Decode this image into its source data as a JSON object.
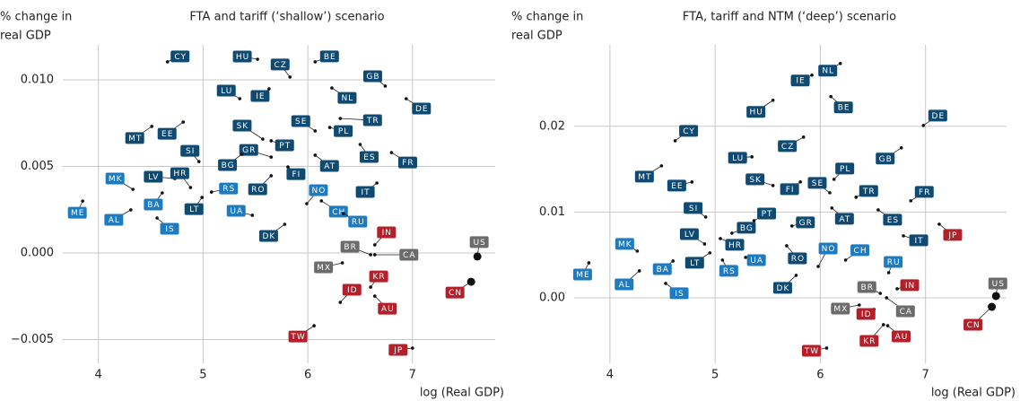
{
  "chart_data": [
    {
      "type": "scatter",
      "title": "FTA and tariff (‘shallow’) scenario",
      "ylabel": [
        "% change in",
        "real GDP"
      ],
      "xlabel": "log (Real GDP)",
      "xlim": [
        3.66,
        7.79
      ],
      "xticks": [
        4,
        5,
        6,
        7
      ],
      "ylim": [
        -0.00637,
        0.01202
      ],
      "yticks": [
        {
          "value": -0.005,
          "label": "−0.005"
        },
        {
          "value": 0,
          "label": "0.000"
        },
        0.005,
        {
          "value": 0.01,
          "label": "0.010"
        }
      ],
      "grid": true,
      "labels": [
        "CY",
        "HU",
        "CZ",
        "BE",
        "GB",
        "NL",
        "DE",
        "LU",
        "IE",
        "SE",
        "TR",
        "SK",
        "PT",
        "PL",
        "MT",
        "EE",
        "SI",
        "GR",
        "ES",
        "FR",
        "BG",
        "AT",
        "FI",
        "MK",
        "LV",
        "HR",
        "RS",
        "RO",
        "NO",
        "IT",
        "ME",
        "AL",
        "BA",
        "IS",
        "LT",
        "UA",
        "CH",
        "RU",
        "DK",
        "IN",
        "BR",
        "CA",
        "US",
        "MX",
        "KR",
        "ID",
        "AU",
        "CN",
        "TW",
        "JP"
      ],
      "x": [
        4.66,
        5.52,
        5.83,
        6.07,
        6.74,
        6.23,
        6.94,
        5.35,
        5.63,
        6.07,
        6.31,
        5.57,
        5.65,
        6.21,
        4.51,
        4.81,
        4.96,
        5.65,
        6.5,
        6.8,
        5.37,
        6.07,
        5.81,
        4.33,
        4.73,
        4.88,
        5.08,
        5.65,
        5.99,
        6.66,
        3.85,
        4.31,
        4.61,
        4.56,
        4.99,
        5.47,
        6.13,
        6.34,
        5.78,
        6.64,
        6.6,
        6.64,
        7.62,
        6.33,
        6.6,
        6.31,
        6.64,
        7.56,
        6.06,
        7.0
      ],
      "values": [
        0.01104,
        0.01119,
        0.01016,
        0.01104,
        0.00964,
        0.00953,
        0.00891,
        0.00891,
        0.00948,
        0.00705,
        0.00777,
        0.00658,
        0.00648,
        0.00725,
        0.00731,
        0.00756,
        0.00528,
        0.00554,
        0.00627,
        0.0058,
        0.0057,
        0.00565,
        0.00497,
        0.00368,
        0.0043,
        0.00378,
        0.00352,
        0.00446,
        0.00285,
        0.00404,
        0.003,
        0.00249,
        0.00347,
        0.00202,
        0.00321,
        0.00218,
        0.00301,
        0.00228,
        0.00166,
        0.00047,
        -0.0001,
        -0.0001,
        -0.0002,
        -0.00057,
        -0.00197,
        -0.00285,
        -0.00249,
        -0.00166,
        -0.0042,
        -0.00549
      ],
      "colors": [
        "#0e4a72",
        "#0e4a72",
        "#0e4a72",
        "#0e4a72",
        "#0e4a72",
        "#0e4a72",
        "#0e4a72",
        "#0e4a72",
        "#0e4a72",
        "#0e4a72",
        "#0e4a72",
        "#0e4a72",
        "#0e4a72",
        "#0e4a72",
        "#0e4a72",
        "#0e4a72",
        "#0e4a72",
        "#0e4a72",
        "#0e4a72",
        "#0e4a72",
        "#0e4a72",
        "#0e4a72",
        "#0e4a72",
        "#1f7bbf",
        "#0e4a72",
        "#0e4a72",
        "#1f7bbf",
        "#0e4a72",
        "#1f7bbf",
        "#0e4a72",
        "#1f7bbf",
        "#1f7bbf",
        "#1f7bbf",
        "#1f7bbf",
        "#0e4a72",
        "#1f7bbf",
        "#1f7bbf",
        "#1f7bbf",
        "#0e4a72",
        "#b3202a",
        "#6b6b6b",
        "#6b6b6b",
        "#6b6b6b",
        "#6b6b6b",
        "#b3202a",
        "#b3202a",
        "#b3202a",
        "#b3202a",
        "#b3202a",
        "#b3202a"
      ]
    },
    {
      "type": "scatter",
      "title": "FTA, tariff and NTM (‘deep’) scenario",
      "ylabel": [
        "% change in",
        "real GDP"
      ],
      "xlabel": "log (Real GDP)",
      "xlim": [
        3.66,
        7.77
      ],
      "xticks": [
        4,
        5,
        6,
        7
      ],
      "ylim": [
        -0.00764,
        0.0295
      ],
      "yticks": [
        {
          "value": 0,
          "label": "0.00"
        },
        0.01,
        0.02
      ],
      "grid": true,
      "labels": [
        "NL",
        "IE",
        "HU",
        "BE",
        "DE",
        "CY",
        "CZ",
        "GB",
        "LU",
        "MT",
        "PL",
        "SK",
        "EE",
        "FI",
        "SE",
        "TR",
        "FR",
        "SI",
        "PT",
        "AT",
        "ES",
        "GR",
        "BG",
        "JP",
        "MK",
        "LV",
        "HR",
        "IT",
        "NO",
        "CH",
        "BA",
        "LT",
        "UA",
        "RO",
        "RS",
        "ME",
        "RU",
        "AL",
        "IS",
        "DK",
        "BR",
        "IN",
        "US",
        "MX",
        "CA",
        "ID",
        "CN",
        "AU",
        "KR",
        "TW"
      ],
      "x": [
        6.19,
        5.92,
        5.55,
        6.1,
        6.98,
        4.62,
        5.84,
        6.77,
        5.35,
        4.49,
        6.13,
        5.55,
        4.78,
        5.81,
        6.09,
        6.34,
        6.86,
        4.91,
        5.37,
        6.11,
        6.55,
        5.73,
        5.16,
        7.13,
        4.26,
        4.9,
        5.05,
        6.79,
        5.98,
        6.24,
        4.6,
        4.95,
        5.29,
        5.68,
        5.07,
        3.8,
        6.65,
        4.28,
        4.53,
        5.77,
        6.57,
        6.73,
        7.67,
        6.37,
        6.63,
        6.51,
        7.63,
        6.64,
        6.6,
        6.06
      ],
      "values": [
        0.02733,
        0.02597,
        0.02304,
        0.02346,
        0.0201,
        0.01832,
        0.01874,
        0.01749,
        0.01644,
        0.01539,
        0.01382,
        0.01309,
        0.01351,
        0.01351,
        0.01225,
        0.01173,
        0.01131,
        0.00942,
        0.009,
        0.01047,
        0.01026,
        0.00838,
        0.00754,
        0.00859,
        0.00545,
        0.00628,
        0.00691,
        0.00723,
        0.00366,
        0.0044,
        0.00429,
        0.00524,
        0.00471,
        0.00607,
        0.0044,
        0.00408,
        0.00293,
        0.00314,
        0.00168,
        0.00262,
        0.00052,
        0.00105,
        0.00021,
        -0.00084,
        0,
        -0.00136,
        -0.00105,
        -0.00325,
        -0.00314,
        -0.00586
      ],
      "colors": [
        "#0e4a72",
        "#0e4a72",
        "#0e4a72",
        "#0e4a72",
        "#0e4a72",
        "#0e4a72",
        "#0e4a72",
        "#0e4a72",
        "#0e4a72",
        "#0e4a72",
        "#0e4a72",
        "#0e4a72",
        "#0e4a72",
        "#0e4a72",
        "#0e4a72",
        "#0e4a72",
        "#0e4a72",
        "#0e4a72",
        "#0e4a72",
        "#0e4a72",
        "#0e4a72",
        "#0e4a72",
        "#0e4a72",
        "#b3202a",
        "#1f7bbf",
        "#0e4a72",
        "#0e4a72",
        "#0e4a72",
        "#1f7bbf",
        "#1f7bbf",
        "#1f7bbf",
        "#0e4a72",
        "#1f7bbf",
        "#0e4a72",
        "#1f7bbf",
        "#1f7bbf",
        "#1f7bbf",
        "#1f7bbf",
        "#1f7bbf",
        "#0e4a72",
        "#6b6b6b",
        "#b3202a",
        "#6b6b6b",
        "#6b6b6b",
        "#6b6b6b",
        "#b3202a",
        "#b3202a",
        "#b3202a",
        "#b3202a",
        "#b3202a"
      ]
    }
  ]
}
